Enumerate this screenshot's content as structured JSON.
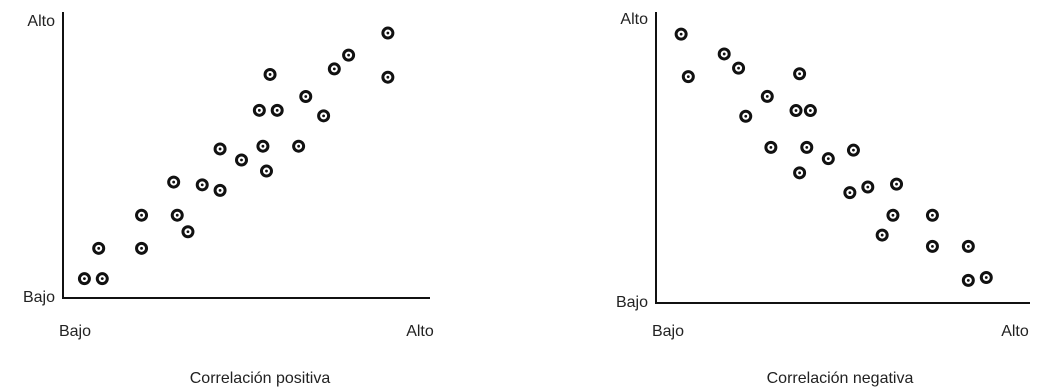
{
  "chart_data": [
    {
      "type": "scatter",
      "title": "Correlación positiva",
      "xlim": [
        0,
        100
      ],
      "ylim": [
        0,
        100
      ],
      "xticks": [
        {
          "value": 0,
          "label": "Bajo"
        },
        {
          "value": 100,
          "label": "Alto"
        }
      ],
      "yticks": [
        {
          "value": 0,
          "label": "Bajo"
        },
        {
          "value": 100,
          "label": "Alto"
        }
      ],
      "color": "#111111",
      "x": [
        6,
        11,
        10,
        22,
        22,
        32,
        35,
        31,
        39,
        44,
        44,
        50,
        55,
        60,
        58,
        56,
        57,
        66,
        68,
        73,
        76,
        80,
        91,
        91
      ],
      "y": [
        7,
        7,
        18,
        18,
        30,
        30,
        24,
        42,
        41,
        39,
        54,
        50,
        68,
        68,
        81,
        55,
        46,
        55,
        73,
        66,
        83,
        88,
        96,
        80
      ]
    },
    {
      "type": "scatter",
      "title": "Correlación negativa",
      "xlim": [
        0,
        100
      ],
      "ylim": [
        0,
        100
      ],
      "xticks": [
        {
          "value": 0,
          "label": "Bajo"
        },
        {
          "value": 100,
          "label": "Alto"
        }
      ],
      "yticks": [
        {
          "value": 0,
          "label": "Bajo"
        },
        {
          "value": 100,
          "label": "Alto"
        }
      ],
      "color": "#111111",
      "x": [
        7,
        9,
        19,
        23,
        31,
        25,
        40,
        39,
        43,
        42,
        32,
        48,
        55,
        40,
        54,
        59,
        67,
        66,
        63,
        77,
        77,
        87,
        87,
        92
      ],
      "y": [
        95,
        80,
        88,
        83,
        73,
        66,
        81,
        68,
        68,
        55,
        55,
        51,
        54,
        46,
        39,
        41,
        42,
        31,
        24,
        31,
        20,
        20,
        8,
        9
      ]
    }
  ]
}
